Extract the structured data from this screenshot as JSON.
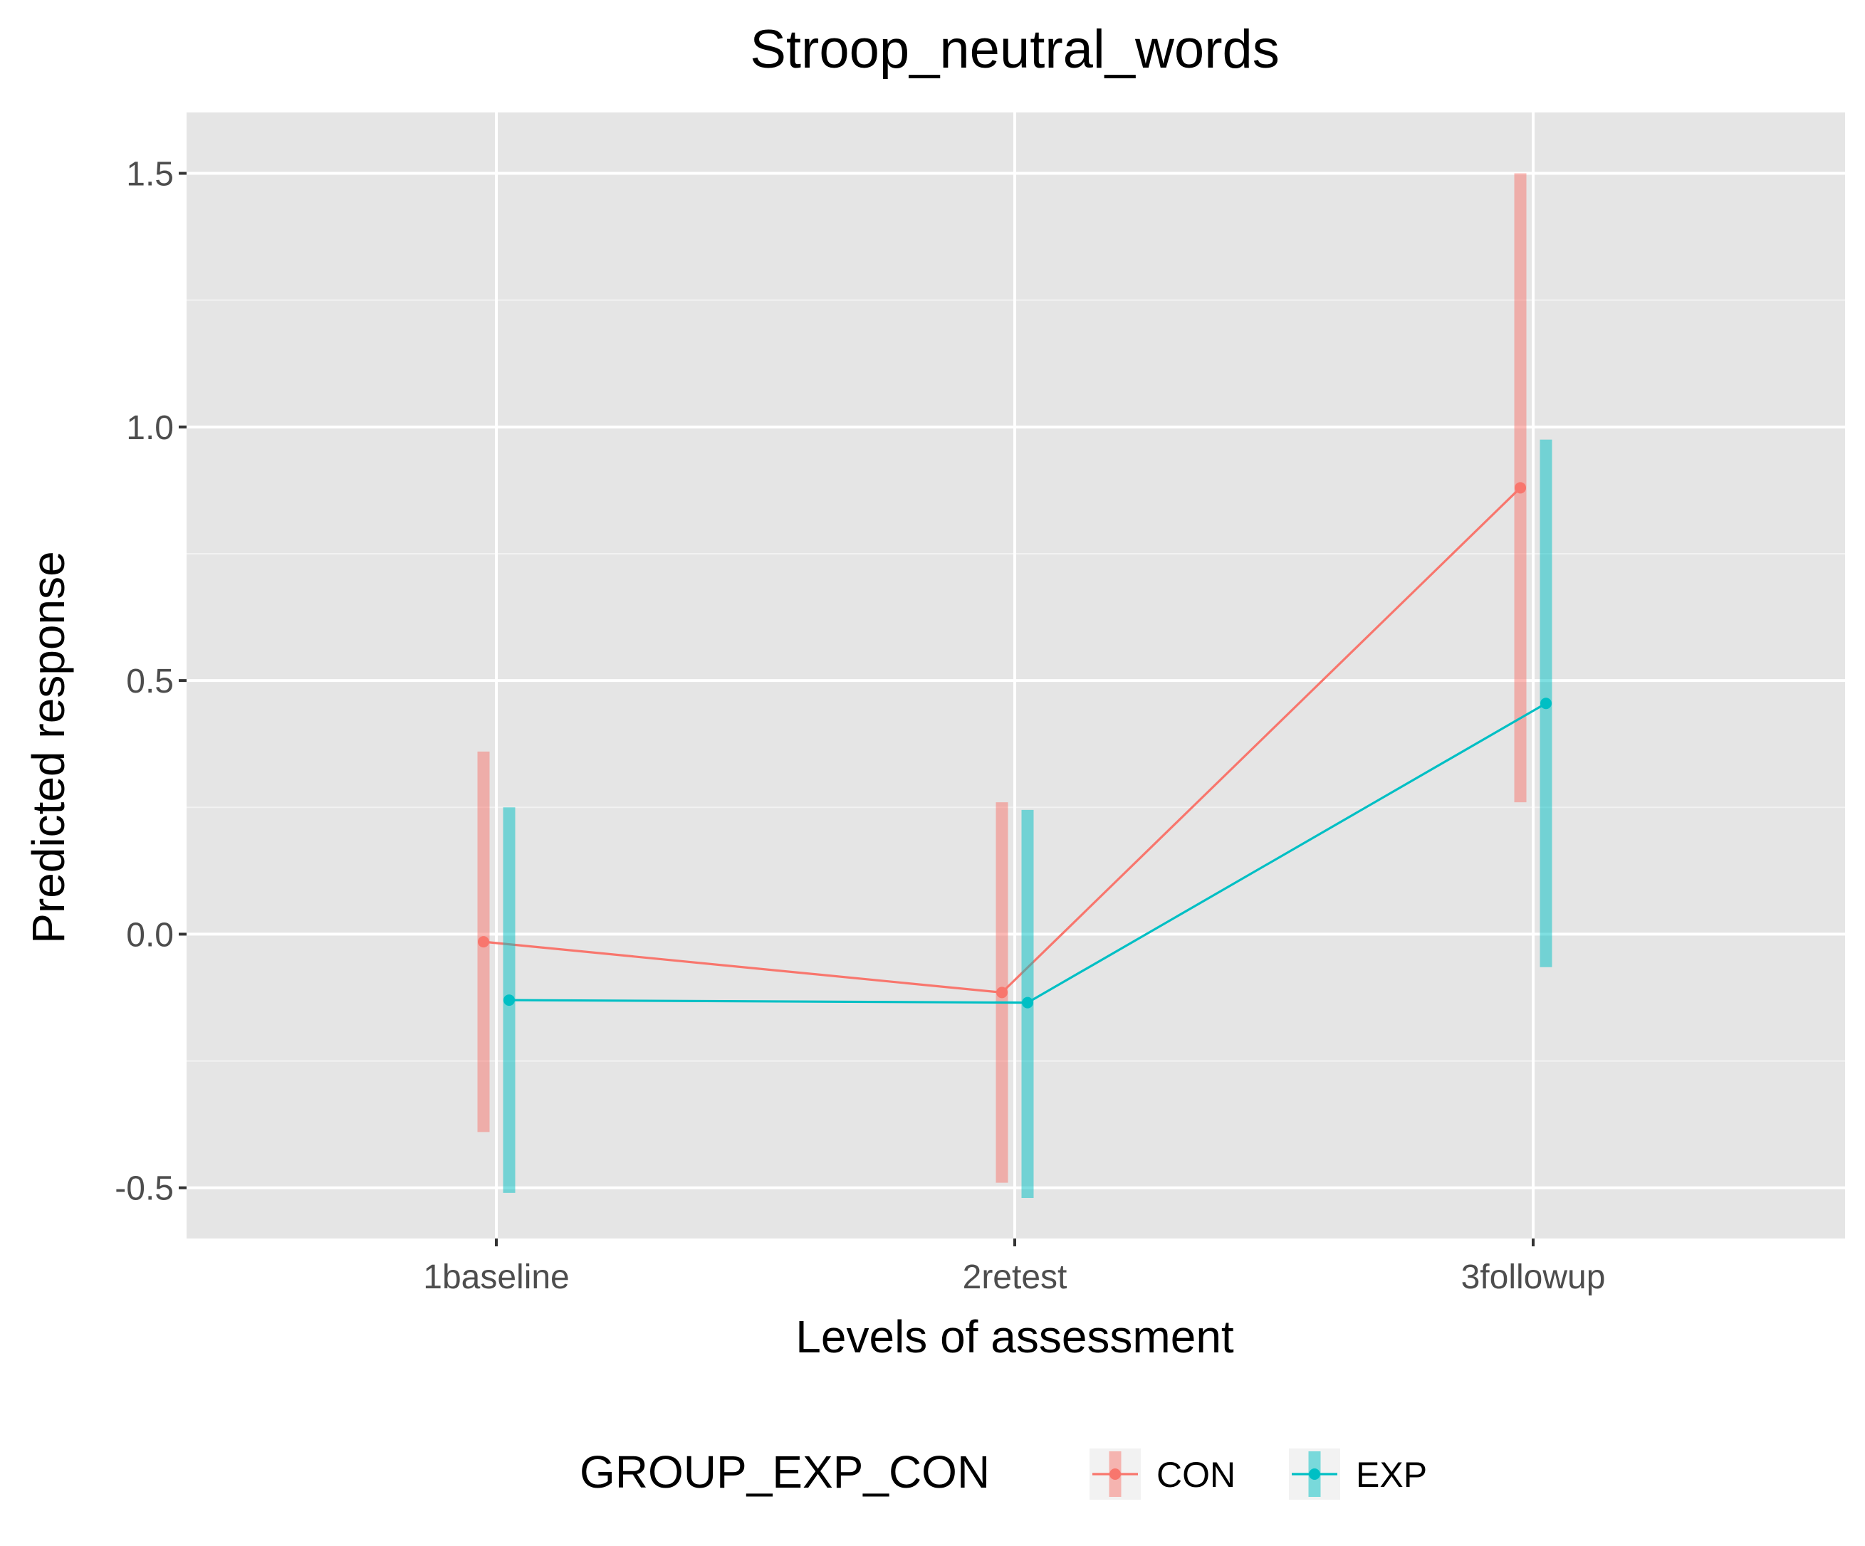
{
  "chart_data": {
    "type": "line",
    "title": "Stroop_neutral_words",
    "xlabel": "Levels of assessment",
    "ylabel": "Predicted response",
    "categories": [
      "1baseline",
      "2retest",
      "3followup"
    ],
    "ylim": [
      -0.6,
      1.62
    ],
    "yticks": [
      -0.5,
      0.0,
      0.5,
      1.0,
      1.5
    ],
    "ytick_labels": [
      "-0.5",
      "0.0",
      "0.5",
      "1.0",
      "1.5"
    ],
    "grid": true,
    "legend": {
      "title": "GROUP_EXP_CON",
      "position": "bottom"
    },
    "series": [
      {
        "name": "CON",
        "color": "#F8766D",
        "values": [
          -0.015,
          -0.115,
          0.88
        ],
        "lower": [
          -0.39,
          -0.49,
          0.26
        ],
        "upper": [
          0.36,
          0.26,
          1.5
        ]
      },
      {
        "name": "EXP",
        "color": "#00BFC4",
        "values": [
          -0.13,
          -0.135,
          0.455
        ],
        "lower": [
          -0.51,
          -0.52,
          -0.065
        ],
        "upper": [
          0.25,
          0.245,
          0.975
        ]
      }
    ]
  }
}
